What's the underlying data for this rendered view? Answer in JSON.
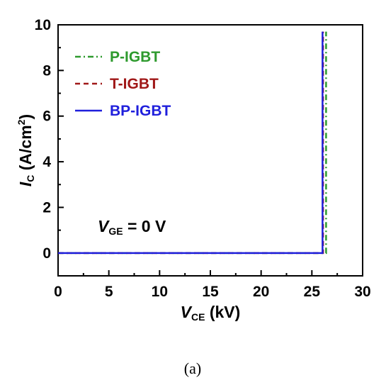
{
  "chart_data": {
    "type": "line",
    "xlabel": {
      "main": "V",
      "sub": "CE",
      "rest": " (kV)"
    },
    "ylabel": {
      "main": "I",
      "sub": "C",
      "rest": " (A/cm",
      "sup": "2",
      "close": ")"
    },
    "xlim": [
      0,
      30
    ],
    "ylim": [
      -1,
      10
    ],
    "xticks": [
      0,
      5,
      10,
      15,
      20,
      25,
      30
    ],
    "yticks": [
      0,
      2,
      4,
      6,
      8,
      10
    ],
    "grid": false,
    "legend_position": "top-left",
    "annotation": {
      "main": "V",
      "sub": "GE",
      "rest": " = 0 V"
    },
    "series": [
      {
        "name": "P-IGBT",
        "color": "#2e9a2e",
        "dash": "dash-dot",
        "x": [
          0,
          26.4,
          26.4
        ],
        "y": [
          0,
          0,
          9.7
        ]
      },
      {
        "name": "T-IGBT",
        "color": "#a01818",
        "dash": "dashed",
        "x": [
          0,
          26.1,
          26.1
        ],
        "y": [
          0,
          0,
          9.7
        ]
      },
      {
        "name": "BP-IGBT",
        "color": "#1f1fdc",
        "dash": "solid",
        "x": [
          0,
          26.05,
          26.05
        ],
        "y": [
          0,
          0,
          9.7
        ]
      }
    ]
  },
  "caption": "(a)"
}
